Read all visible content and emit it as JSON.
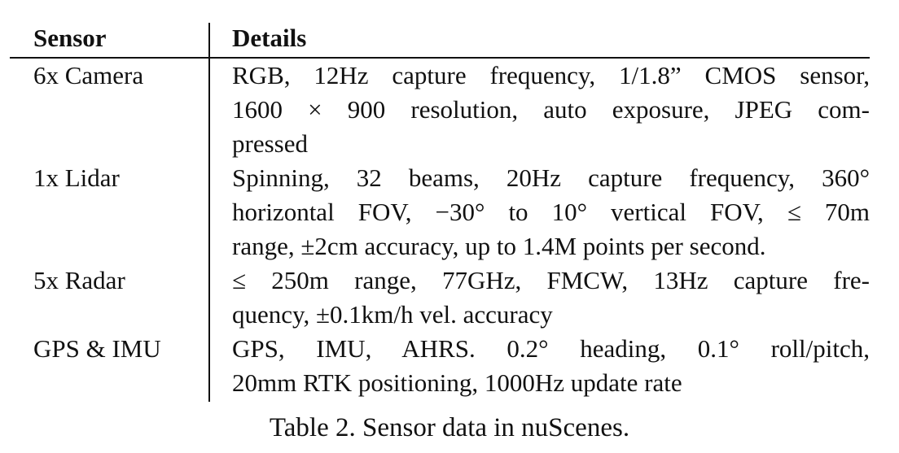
{
  "table": {
    "header": {
      "sensor": "Sensor",
      "details": "Details"
    },
    "rows": [
      {
        "sensor": "6x Camera",
        "lines": [
          "RGB, 12Hz capture frequency, 1/1.8” CMOS sensor,",
          "1600 × 900 resolution, auto exposure, JPEG com-",
          "pressed"
        ]
      },
      {
        "sensor": "1x Lidar",
        "lines": [
          "Spinning, 32 beams, 20Hz capture frequency, 360°",
          "horizontal FOV, −30° to 10° vertical FOV, ≤ 70m",
          "range, ±2cm accuracy, up to 1.4M points per second."
        ]
      },
      {
        "sensor": "5x Radar",
        "lines": [
          "≤ 250m range, 77GHz, FMCW, 13Hz capture fre-",
          "quency, ±0.1km/h vel. accuracy"
        ]
      },
      {
        "sensor": "GPS & IMU",
        "lines": [
          "GPS, IMU, AHRS. 0.2° heading, 0.1° roll/pitch,",
          "20mm RTK positioning, 1000Hz update rate"
        ]
      }
    ]
  },
  "caption": "Table 2. Sensor data in nuScenes."
}
